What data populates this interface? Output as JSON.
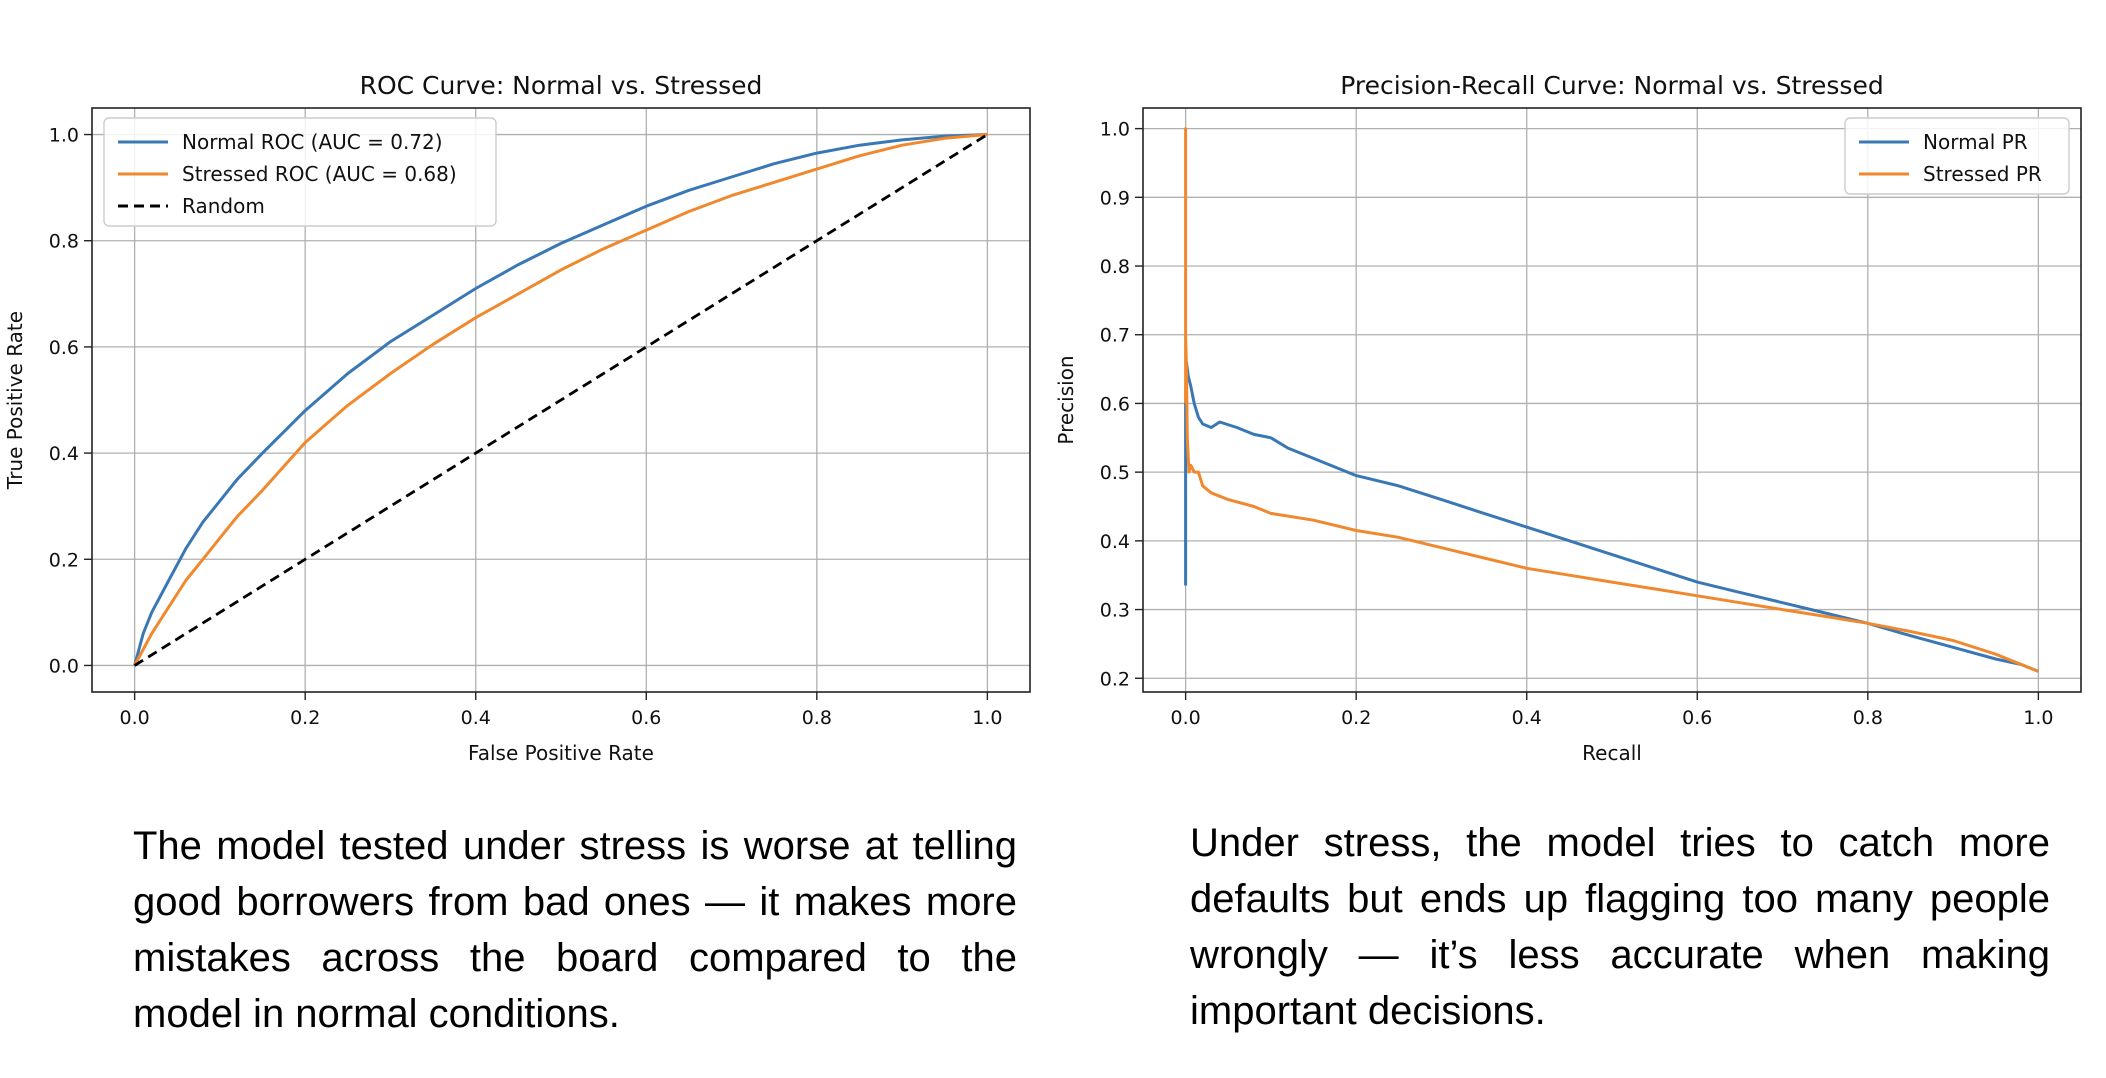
{
  "chart_data": [
    {
      "type": "line",
      "title": "ROC Curve: Normal vs. Stressed",
      "xlabel": "False Positive Rate",
      "ylabel": "True Positive Rate",
      "xlim": [
        -0.05,
        1.05
      ],
      "ylim": [
        -0.05,
        1.05
      ],
      "xticks": [
        0.0,
        0.2,
        0.4,
        0.6,
        0.8,
        1.0
      ],
      "yticks": [
        0.0,
        0.2,
        0.4,
        0.6,
        0.8,
        1.0
      ],
      "xtick_labels": [
        "0.0",
        "0.2",
        "0.4",
        "0.6",
        "0.8",
        "1.0"
      ],
      "ytick_labels": [
        "0.0",
        "0.2",
        "0.4",
        "0.6",
        "0.8",
        "1.0"
      ],
      "grid": true,
      "legend_position": "upper-left",
      "series": [
        {
          "name": "Normal ROC (AUC = 0.72)",
          "color": "#3a78b5",
          "style": "solid",
          "x": [
            0.0,
            0.01,
            0.02,
            0.04,
            0.06,
            0.08,
            0.1,
            0.12,
            0.15,
            0.2,
            0.25,
            0.3,
            0.35,
            0.4,
            0.45,
            0.5,
            0.55,
            0.6,
            0.65,
            0.7,
            0.75,
            0.8,
            0.85,
            0.9,
            0.95,
            1.0
          ],
          "y": [
            0.0,
            0.06,
            0.1,
            0.16,
            0.22,
            0.27,
            0.31,
            0.35,
            0.4,
            0.48,
            0.55,
            0.61,
            0.66,
            0.71,
            0.755,
            0.795,
            0.83,
            0.865,
            0.895,
            0.92,
            0.945,
            0.965,
            0.98,
            0.99,
            0.997,
            1.0
          ]
        },
        {
          "name": "Stressed ROC (AUC = 0.68)",
          "color": "#f0892e",
          "style": "solid",
          "x": [
            0.0,
            0.02,
            0.04,
            0.06,
            0.08,
            0.1,
            0.12,
            0.15,
            0.2,
            0.25,
            0.3,
            0.35,
            0.4,
            0.45,
            0.5,
            0.55,
            0.6,
            0.65,
            0.7,
            0.75,
            0.8,
            0.85,
            0.9,
            0.95,
            1.0
          ],
          "y": [
            0.0,
            0.06,
            0.11,
            0.16,
            0.2,
            0.24,
            0.28,
            0.33,
            0.42,
            0.49,
            0.55,
            0.605,
            0.655,
            0.7,
            0.745,
            0.785,
            0.82,
            0.855,
            0.885,
            0.91,
            0.935,
            0.96,
            0.98,
            0.993,
            1.0
          ]
        },
        {
          "name": "Random",
          "color": "#000000",
          "style": "dashed",
          "x": [
            0.0,
            1.0
          ],
          "y": [
            0.0,
            1.0
          ]
        }
      ]
    },
    {
      "type": "line",
      "title": "Precision-Recall Curve: Normal vs. Stressed",
      "xlabel": "Recall",
      "ylabel": "Precision",
      "xlim": [
        -0.05,
        1.05
      ],
      "ylim": [
        0.18,
        1.03
      ],
      "xticks": [
        0.0,
        0.2,
        0.4,
        0.6,
        0.8,
        1.0
      ],
      "yticks": [
        0.2,
        0.3,
        0.4,
        0.5,
        0.6,
        0.7,
        0.8,
        0.9,
        1.0
      ],
      "xtick_labels": [
        "0.0",
        "0.2",
        "0.4",
        "0.6",
        "0.8",
        "1.0"
      ],
      "ytick_labels": [
        "0.2",
        "0.3",
        "0.4",
        "0.5",
        "0.6",
        "0.7",
        "0.8",
        "0.9",
        "1.0"
      ],
      "grid": true,
      "legend_position": "upper-right",
      "series": [
        {
          "name": "Normal PR",
          "color": "#3a78b5",
          "style": "solid",
          "x": [
            0.0,
            0.0,
            0.0,
            0.001,
            0.003,
            0.006,
            0.01,
            0.015,
            0.02,
            0.03,
            0.04,
            0.06,
            0.08,
            0.1,
            0.12,
            0.15,
            0.2,
            0.25,
            0.3,
            0.35,
            0.4,
            0.45,
            0.5,
            0.55,
            0.6,
            0.65,
            0.7,
            0.75,
            0.8,
            0.85,
            0.9,
            0.95,
            0.98,
            1.0
          ],
          "y": [
            0.335,
            0.5,
            0.6,
            0.66,
            0.64,
            0.625,
            0.6,
            0.58,
            0.57,
            0.565,
            0.573,
            0.565,
            0.555,
            0.55,
            0.535,
            0.52,
            0.495,
            0.48,
            0.46,
            0.44,
            0.42,
            0.4,
            0.38,
            0.36,
            0.34,
            0.325,
            0.31,
            0.295,
            0.28,
            0.262,
            0.245,
            0.228,
            0.22,
            0.21
          ]
        },
        {
          "name": "Stressed PR",
          "color": "#f0892e",
          "style": "solid",
          "x": [
            0.0,
            0.0,
            0.0,
            0.0,
            0.001,
            0.002,
            0.004,
            0.006,
            0.01,
            0.015,
            0.02,
            0.03,
            0.05,
            0.08,
            0.1,
            0.15,
            0.2,
            0.25,
            0.3,
            0.35,
            0.4,
            0.45,
            0.5,
            0.55,
            0.6,
            0.65,
            0.7,
            0.75,
            0.8,
            0.85,
            0.9,
            0.95,
            1.0
          ],
          "y": [
            0.6,
            1.0,
            0.85,
            0.7,
            0.65,
            0.55,
            0.5,
            0.51,
            0.5,
            0.5,
            0.48,
            0.47,
            0.46,
            0.45,
            0.44,
            0.43,
            0.415,
            0.405,
            0.39,
            0.375,
            0.36,
            0.35,
            0.34,
            0.33,
            0.32,
            0.31,
            0.3,
            0.29,
            0.28,
            0.268,
            0.255,
            0.235,
            0.21
          ]
        }
      ]
    }
  ],
  "captions": {
    "left": "The model tested under stress is worse at telling good borrowers from bad ones — it makes more mistakes across the board compared to the model in normal conditions.",
    "right": "Under stress, the model tries to catch more defaults but ends up flagging too many people wrongly — it’s less accurate when making important decisions."
  }
}
